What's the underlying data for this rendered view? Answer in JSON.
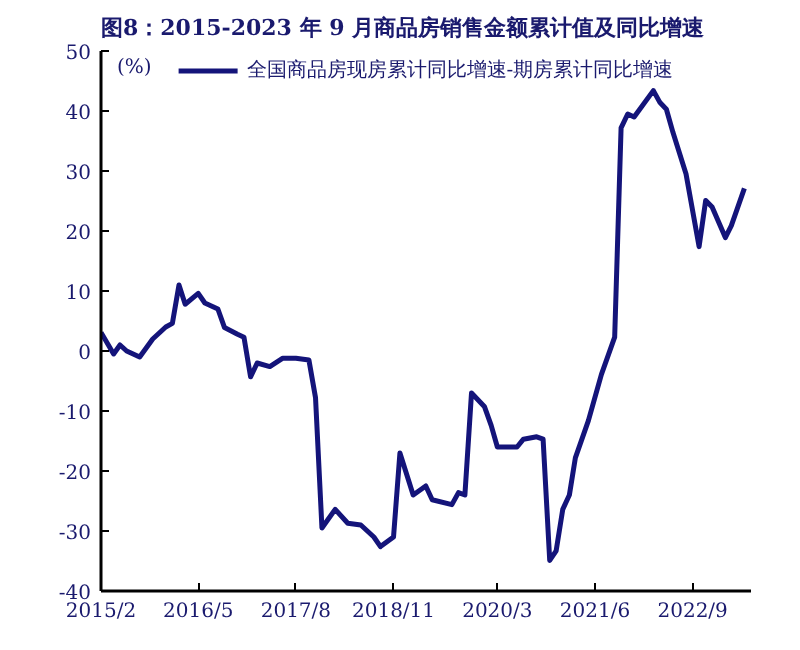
{
  "chart_data": {
    "type": "line",
    "title": "图8：2015-2023 年 9 月商品房销售金额累计值及同比增速",
    "ylabel": "(%)",
    "x": [
      "2015-02",
      "2015-04",
      "2015-05",
      "2015-06",
      "2015-08",
      "2015-10",
      "2015-12",
      "2016-01",
      "2016-02",
      "2016-03",
      "2016-05",
      "2016-06",
      "2016-08",
      "2016-09",
      "2016-11",
      "2016-12",
      "2017-01",
      "2017-02",
      "2017-04",
      "2017-06",
      "2017-08",
      "2017-10",
      "2017-11",
      "2017-12",
      "2018-02",
      "2018-04",
      "2018-06",
      "2018-08",
      "2018-09",
      "2018-11",
      "2018-12",
      "2019-02",
      "2019-04",
      "2019-05",
      "2019-08",
      "2019-09",
      "2019-10",
      "2019-11",
      "2020-01",
      "2020-02",
      "2020-03",
      "2020-06",
      "2020-07",
      "2020-09",
      "2020-10",
      "2020-11",
      "2020-12",
      "2021-01",
      "2021-02",
      "2021-03",
      "2021-05",
      "2021-07",
      "2021-09",
      "2021-10",
      "2021-11",
      "2021-12",
      "2022-03",
      "2022-04",
      "2022-05",
      "2022-06",
      "2022-08",
      "2022-10",
      "2022-11",
      "2022-12",
      "2023-02",
      "2023-03",
      "2023-05"
    ],
    "series": [
      {
        "name": "全国商品房现房累计同比增速-期房累计同比增速",
        "color": "#14147a",
        "values": [
          3.1,
          -0.5,
          1,
          0,
          -1,
          2,
          4,
          4.6,
          11,
          7.8,
          9.6,
          8,
          7,
          3.9,
          2.8,
          2.3,
          -4.3,
          -2,
          -2.6,
          -1.2,
          -1.2,
          -1.5,
          -7.8,
          -29.5,
          -26.4,
          -28.7,
          -29,
          -31,
          -32.6,
          -31,
          -17,
          -24,
          -22.5,
          -24.8,
          -25.6,
          -23.6,
          -24,
          -7,
          -9.3,
          -12.4,
          -16,
          -16,
          -14.7,
          -14.3,
          -14.7,
          -34.9,
          -33.3,
          -26.4,
          -24,
          -17.8,
          -11.6,
          -3.9,
          2.3,
          37.2,
          39.5,
          39,
          43.4,
          41.4,
          40.3,
          36.4,
          29.5,
          17.4,
          25.1,
          24,
          18.9,
          20.9,
          27.1
        ]
      }
    ],
    "xlim": [
      "2015-02",
      "2023-06"
    ],
    "xticks": [
      {
        "value": "2015-02",
        "label": "2015/2"
      },
      {
        "value": "2016-05",
        "label": "2016/5"
      },
      {
        "value": "2017-08",
        "label": "2017/8"
      },
      {
        "value": "2018-11",
        "label": "2018/11"
      },
      {
        "value": "2020-03",
        "label": "2020/3"
      },
      {
        "value": "2021-06",
        "label": "2021/6"
      },
      {
        "value": "2022-09",
        "label": "2022/9"
      }
    ],
    "ylim": [
      -40,
      50
    ],
    "yticks": [
      -40,
      -30,
      -20,
      -10,
      0,
      10,
      20,
      30,
      40,
      50
    ],
    "grid": false,
    "legend": "top",
    "marker": "none",
    "line_style": "solid"
  }
}
